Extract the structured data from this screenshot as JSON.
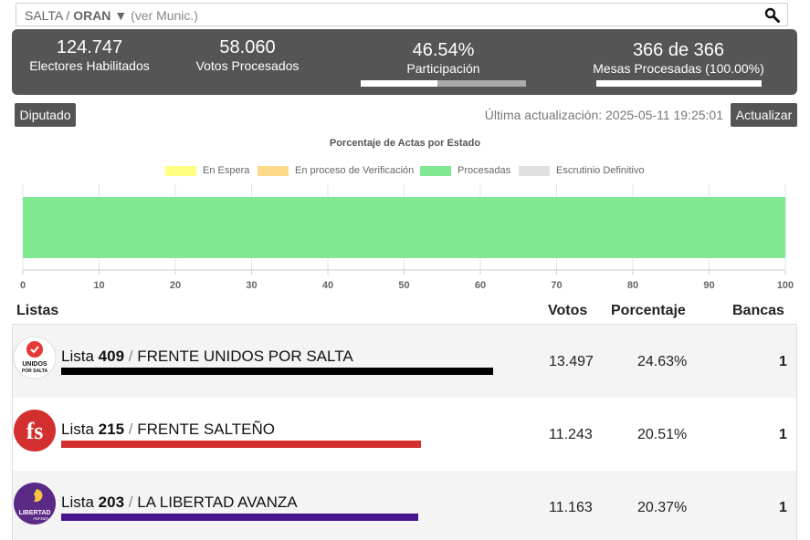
{
  "search": {
    "province": "SALTA",
    "separator": " / ",
    "department": "ORAN",
    "arrow": "▼",
    "hint": "(ver Munic.)",
    "icon": "search-icon"
  },
  "stats": {
    "electores": {
      "value": "124.747",
      "label": "Electores Habilitados"
    },
    "votos": {
      "value": "58.060",
      "label": "Votos Procesados"
    },
    "participacion": {
      "value": "46.54%",
      "label": "Participación",
      "progress": 0.4654
    },
    "mesas": {
      "value": "366 de 366",
      "label": "Mesas Procesadas (100.00%)",
      "progress": 1.0
    }
  },
  "toolbar": {
    "category_label": "Diputado",
    "updated_text": "Última actualización: 2025-05-11 19:25:01",
    "refresh_label": "Actualizar"
  },
  "chart_data": {
    "type": "bar",
    "orientation": "horizontal",
    "stacked": true,
    "title": "Porcentaje de Actas por Estado",
    "series": [
      {
        "name": "En Espera",
        "color": "#ffff80",
        "values": [
          0
        ]
      },
      {
        "name": "En proceso de Verificación",
        "color": "#ffd98a",
        "values": [
          0
        ]
      },
      {
        "name": "Procesadas",
        "color": "#80e890",
        "values": [
          100
        ]
      },
      {
        "name": "Escrutinio Definitivo",
        "color": "#e0e0e0",
        "values": [
          0
        ]
      }
    ],
    "xlim": [
      0,
      100
    ],
    "xticks": [
      0,
      10,
      20,
      30,
      40,
      50,
      60,
      70,
      80,
      90,
      100
    ],
    "legend_position": "top",
    "grid": true
  },
  "table": {
    "headers": {
      "listas": "Listas",
      "votos": "Votos",
      "porcentaje": "Porcentaje",
      "bancas": "Bancas"
    },
    "rows": [
      {
        "prefix": "Lista",
        "number": "409",
        "sep": " / ",
        "name": "FRENTE UNIDOS POR SALTA",
        "votes": "13.497",
        "percent": "24.63%",
        "pct_value": 24.63,
        "seats": "1",
        "color": "#000000",
        "logo": "unidos-logo",
        "logo_text1": "UNIDOS",
        "logo_text2": "POR SALTA"
      },
      {
        "prefix": "Lista",
        "number": "215",
        "sep": " / ",
        "name": "FRENTE SALTEÑO",
        "votes": "11.243",
        "percent": "20.51%",
        "pct_value": 20.51,
        "seats": "1",
        "color": "#d32f2f",
        "logo": "fs-logo",
        "logo_text1": "fs"
      },
      {
        "prefix": "Lista",
        "number": "203",
        "sep": " / ",
        "name": "LA LIBERTAD AVANZA",
        "votes": "11.163",
        "percent": "20.37%",
        "pct_value": 20.37,
        "seats": "1",
        "color": "#4a148c",
        "logo": "lla-logo",
        "logo_text1": "LIBERTAD",
        "logo_text2": "AVANZA"
      }
    ]
  }
}
